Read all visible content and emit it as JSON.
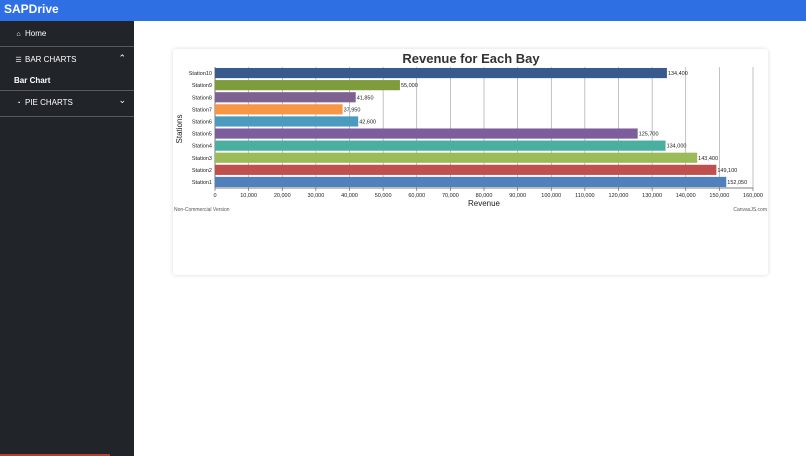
{
  "app": {
    "brand": "SAPDrive"
  },
  "sidebar": {
    "home_label": "Home",
    "bar_charts_label": "BAR CHARTS",
    "bar_chart_link": "Bar Chart",
    "pie_charts_label": "PIE CHARTS",
    "icons": {
      "home": "home-icon",
      "bar": "bar-chart-icon",
      "pie": "pie-chart-icon",
      "bar_chevron": "chevron-up-icon",
      "pie_chevron": "chevron-down-icon"
    }
  },
  "chart_footer": {
    "left": "Non-Commercial Version",
    "right": "CanvasJS.com"
  },
  "chart_data": {
    "type": "bar",
    "title": "Revenue for Each Bay",
    "xlabel": "Revenue",
    "ylabel": "Stations",
    "categories": [
      "Station1",
      "Station2",
      "Station3",
      "Station4",
      "Station5",
      "Station6",
      "Station7",
      "Station8",
      "Station9",
      "Station10"
    ],
    "values": [
      152050,
      149100,
      143400,
      134000,
      125700,
      42600,
      37950,
      41850,
      55000,
      134400
    ],
    "value_labels": [
      "152,050",
      "149,100",
      "143,400",
      "134,000",
      "125,700",
      "42,600",
      "37,950",
      "41,850",
      "55,000",
      "134,400"
    ],
    "colors": [
      "#4f81bc",
      "#c0504e",
      "#9bbb58",
      "#4aaf9e",
      "#7e5d9c",
      "#4b9bbf",
      "#f79645",
      "#7f6292",
      "#7e9c3c",
      "#385a8c"
    ],
    "xlim": [
      0,
      160000
    ],
    "xticks": [
      "0",
      "10,000",
      "20,000",
      "30,000",
      "40,000",
      "50,000",
      "60,000",
      "70,000",
      "80,000",
      "90,000",
      "100,000",
      "110,000",
      "120,000",
      "130,000",
      "140,000",
      "150,000",
      "160,000"
    ],
    "grid": true
  }
}
